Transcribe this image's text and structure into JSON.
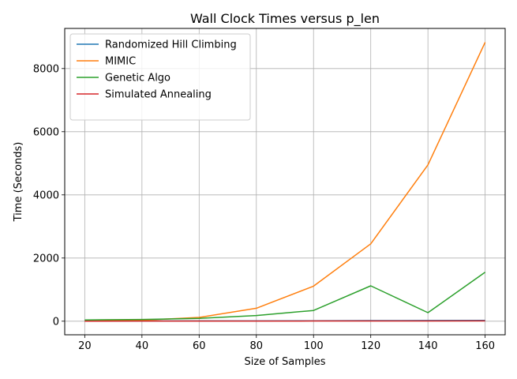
{
  "chart_data": {
    "type": "line",
    "title": "Wall Clock Times versus p_len",
    "xlabel": "Size of Samples",
    "ylabel": "Time (Seconds)",
    "x": [
      20,
      40,
      60,
      80,
      100,
      120,
      140,
      160
    ],
    "xlim": [
      13,
      167
    ],
    "ylim": [
      -430,
      9270
    ],
    "xticks": [
      "20",
      "40",
      "60",
      "80",
      "100",
      "120",
      "140",
      "160"
    ],
    "yticks": [
      "0",
      "2000",
      "4000",
      "6000",
      "8000"
    ],
    "grid": true,
    "legend_position": "top-left",
    "series": [
      {
        "name": "Randomized Hill Climbing",
        "color": "#1f77b4",
        "values": [
          5,
          8,
          10,
          12,
          15,
          20,
          22,
          25
        ]
      },
      {
        "name": "MIMIC",
        "color": "#ff7f0e",
        "values": [
          5,
          30,
          120,
          410,
          1110,
          2450,
          4950,
          8830
        ]
      },
      {
        "name": "Genetic Algo",
        "color": "#2ca02c",
        "values": [
          40,
          55,
          90,
          180,
          340,
          1120,
          270,
          1550
        ]
      },
      {
        "name": "Simulated Annealing",
        "color": "#d62728",
        "values": [
          2,
          3,
          4,
          5,
          6,
          8,
          9,
          10
        ]
      }
    ]
  }
}
